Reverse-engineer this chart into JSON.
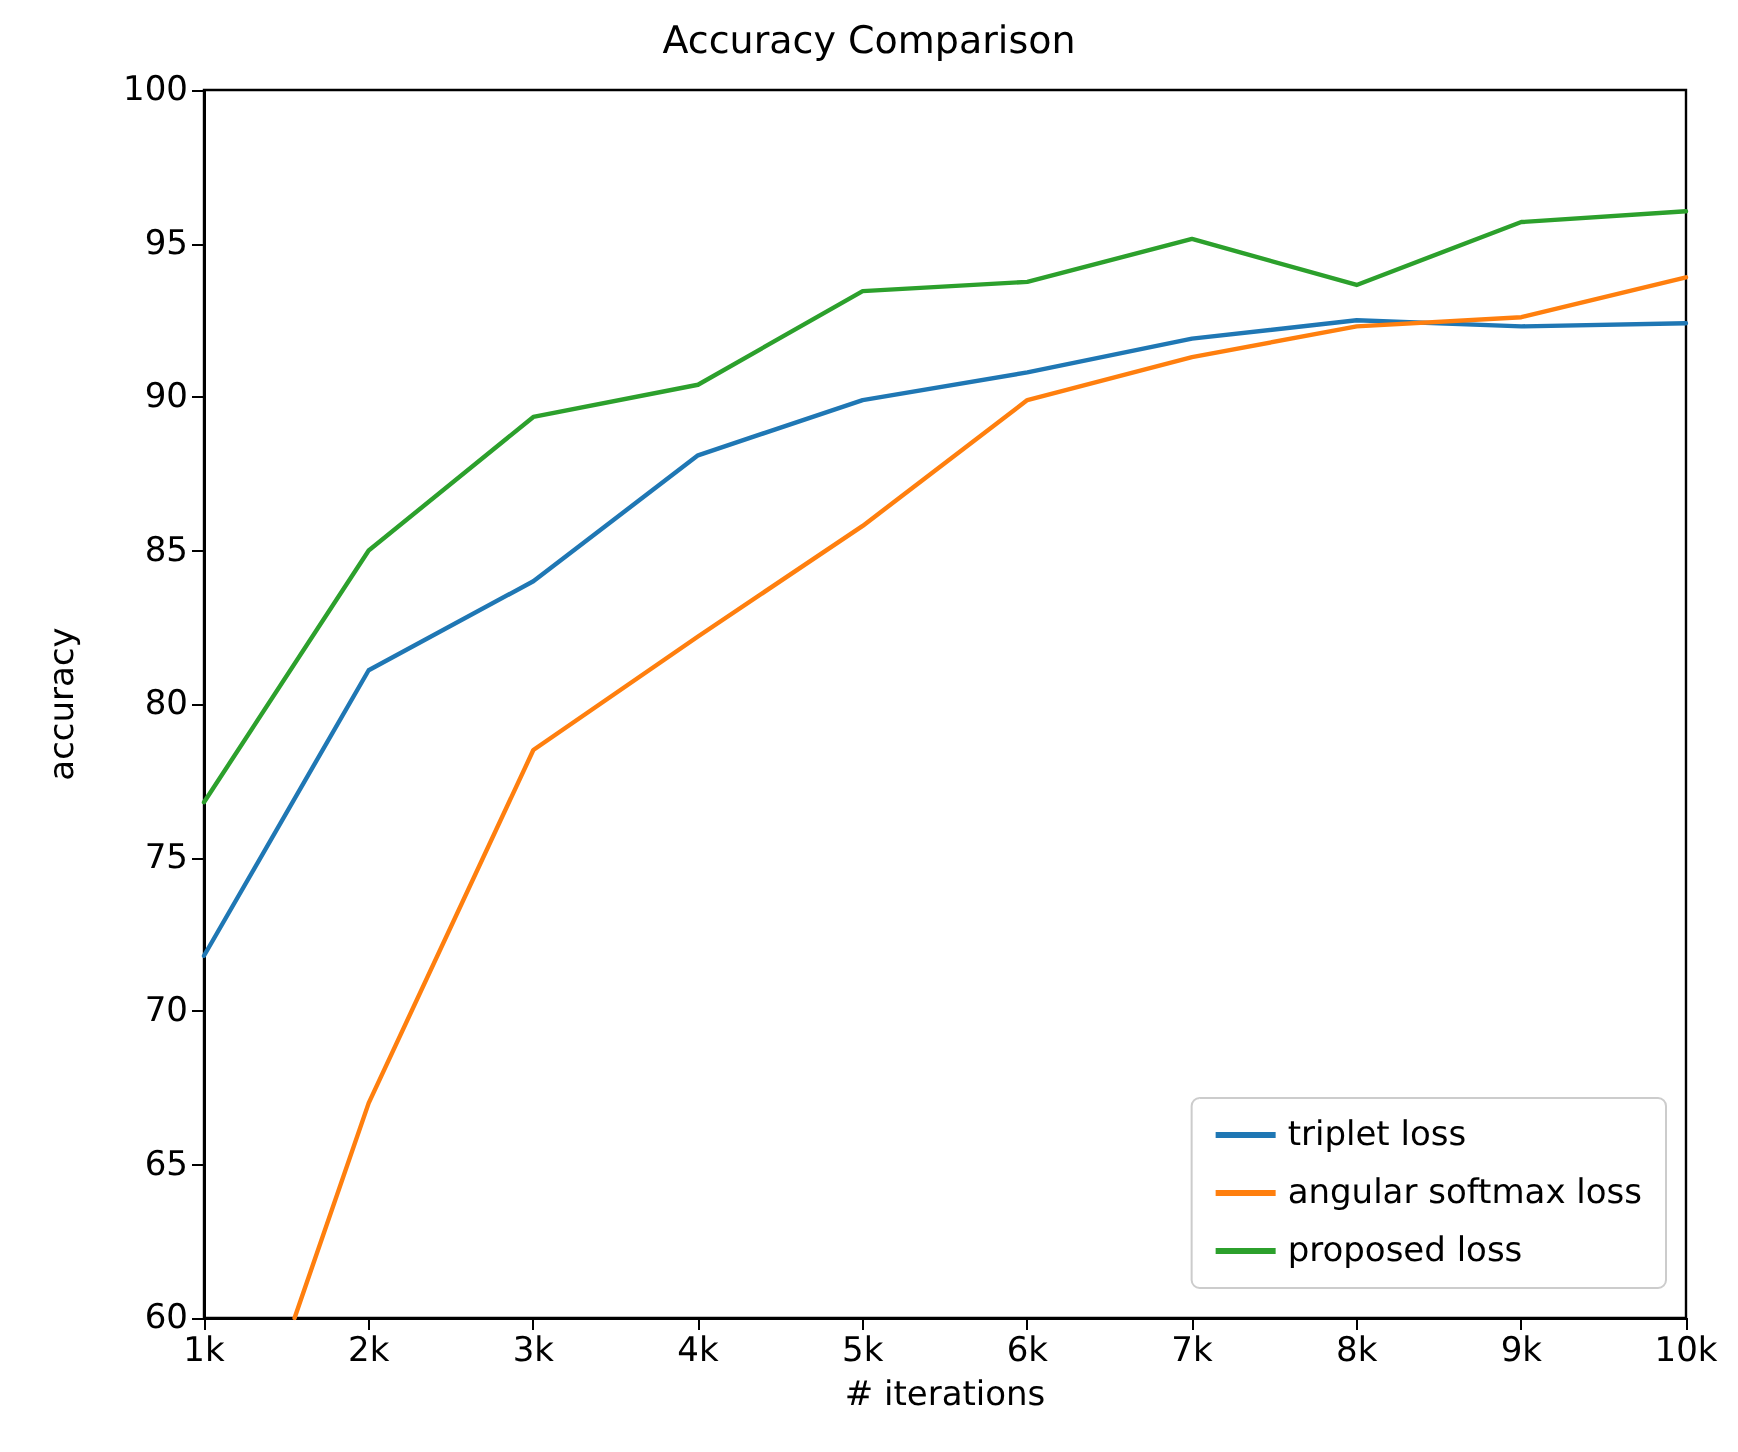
{
  "chart_data": {
    "type": "line",
    "title": "Accuracy Comparison",
    "xlabel": "# iterations",
    "ylabel": "accuracy",
    "x": [
      1000,
      2000,
      3000,
      4000,
      5000,
      6000,
      7000,
      8000,
      9000,
      10000
    ],
    "series": [
      {
        "name": "triplet loss",
        "color": "#1f77b4",
        "values": [
          71.8,
          81.1,
          84.0,
          88.1,
          89.9,
          90.8,
          91.9,
          92.5,
          92.3,
          92.4
        ]
      },
      {
        "name": "angular softmax loss",
        "color": "#ff7f0e",
        "x": [
          1550,
          2000,
          3000,
          4000,
          5000,
          6000,
          7000,
          8000,
          9000,
          10000
        ],
        "values": [
          60,
          67.0,
          78.5,
          82.2,
          85.8,
          89.9,
          91.3,
          92.3,
          92.6,
          93.9
        ]
      },
      {
        "name": "proposed loss",
        "color": "#2ca02c",
        "values": [
          76.8,
          85.0,
          89.35,
          90.4,
          93.45,
          93.75,
          95.15,
          93.65,
          95.7,
          96.05
        ]
      }
    ],
    "xlim": [
      1000,
      10000
    ],
    "xticks": [
      {
        "value": 1000,
        "label": "1k"
      },
      {
        "value": 2000,
        "label": "2k"
      },
      {
        "value": 3000,
        "label": "3k"
      },
      {
        "value": 4000,
        "label": "4k"
      },
      {
        "value": 5000,
        "label": "5k"
      },
      {
        "value": 6000,
        "label": "6k"
      },
      {
        "value": 7000,
        "label": "7k"
      },
      {
        "value": 8000,
        "label": "8k"
      },
      {
        "value": 9000,
        "label": "9k"
      },
      {
        "value": 10000,
        "label": "10k"
      }
    ],
    "ylim": [
      60,
      100
    ],
    "yticks": [
      60,
      65,
      70,
      75,
      80,
      85,
      90,
      95,
      100
    ],
    "grid": false,
    "legend": "bottom right",
    "marker": "none",
    "line_style": "solid"
  }
}
